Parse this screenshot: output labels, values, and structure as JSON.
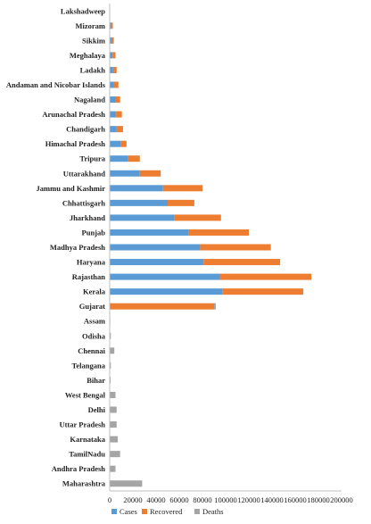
{
  "chart_data": {
    "type": "bar",
    "orientation": "horizontal",
    "stacked": true,
    "categories": [
      "Lakshadweep",
      "Mizoram",
      "Sikkim",
      "Meghalaya",
      "Ladakh",
      "Andaman and Nicobar Islands",
      "Nagaland",
      "Arunachal Pradesh",
      "Chandigarh",
      "Himachal Pradesh",
      "Tripura",
      "Uttarakhand",
      "Jammu and Kashmir",
      "Chhattisgarh",
      "Jharkhand",
      "Punjab",
      "Madhya Pradesh",
      "Haryana",
      "Rajasthan",
      "Kerala",
      "Gujarat",
      "Assam",
      "Odisha",
      "Chennai",
      "Telangana",
      "Bihar",
      "West Bengal",
      "Delhi",
      "Uttar Pradesh",
      "Karnataka",
      "TamilNadu",
      "Andhra Pradesh",
      "Maharashtra"
    ],
    "series": [
      {
        "name": "Cases",
        "color": "#5b9bd5",
        "values": [
          0,
          1200,
          1500,
          2500,
          3000,
          3500,
          5000,
          5500,
          6000,
          9500,
          16000,
          26000,
          46000,
          50000,
          56000,
          68000,
          78000,
          81000,
          95000,
          97000,
          0,
          0,
          0,
          0,
          0,
          0,
          0,
          0,
          0,
          0,
          0,
          0,
          0
        ]
      },
      {
        "name": "Recovered",
        "color": "#ed7d31",
        "values": [
          0,
          1500,
          2000,
          2500,
          3000,
          4000,
          4000,
          5000,
          5500,
          5000,
          10000,
          18000,
          34000,
          23000,
          40000,
          52000,
          61000,
          66000,
          79000,
          70000,
          90000,
          0,
          0,
          0,
          0,
          0,
          0,
          0,
          0,
          0,
          0,
          0,
          0
        ]
      },
      {
        "name": "Deaths",
        "color": "#a5a5a5",
        "values": [
          0,
          0,
          0,
          0,
          0,
          0,
          0,
          0,
          0,
          0,
          0,
          0,
          0,
          0,
          0,
          0,
          0,
          0,
          0,
          0,
          1500,
          500,
          1000,
          4000,
          1000,
          800,
          5000,
          6000,
          6000,
          7000,
          9000,
          5000,
          28000
        ]
      }
    ],
    "xlim": [
      0,
      200000
    ],
    "x_ticks": [
      0,
      20000,
      40000,
      60000,
      80000,
      100000,
      120000,
      140000,
      160000,
      180000,
      200000
    ],
    "x_tick_labels": [
      "0",
      "20000",
      "40000",
      "60000",
      "80000",
      "100000",
      "120000",
      "140000",
      "160000",
      "180000",
      "200000"
    ],
    "title": "",
    "xlabel": "",
    "ylabel": "",
    "grid": false,
    "legend": "bottom"
  }
}
